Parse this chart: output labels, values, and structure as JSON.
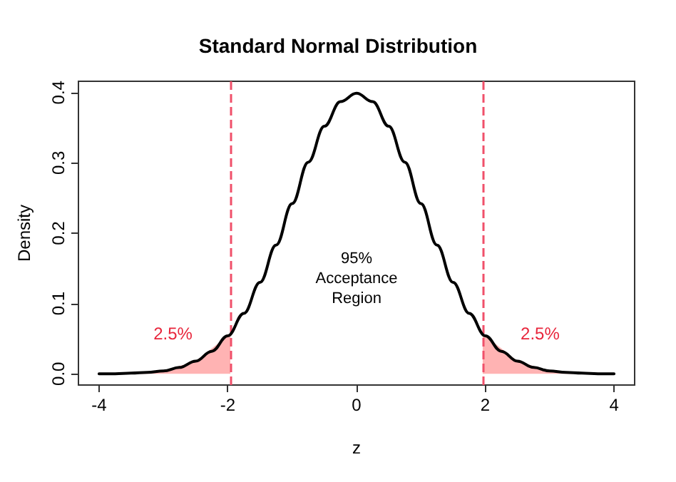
{
  "chart_data": {
    "type": "line",
    "title": "Standard Normal Distribution",
    "xlabel": "z",
    "ylabel": "Density",
    "x": [
      -4,
      -3.75,
      -3.5,
      -3.25,
      -3,
      -2.75,
      -2.5,
      -2.25,
      -2,
      -1.75,
      -1.5,
      -1.25,
      -1,
      -0.75,
      -0.5,
      -0.25,
      0,
      0.25,
      0.5,
      0.75,
      1,
      1.25,
      1.5,
      1.75,
      2,
      2.25,
      2.5,
      2.75,
      3,
      3.25,
      3.5,
      3.75,
      4
    ],
    "series": [
      {
        "color": "#000000",
        "values": [
          0.0,
          0.0,
          0.001,
          0.002,
          0.004,
          0.009,
          0.018,
          0.032,
          0.054,
          0.086,
          0.13,
          0.183,
          0.242,
          0.301,
          0.352,
          0.387,
          0.399,
          0.387,
          0.352,
          0.301,
          0.242,
          0.183,
          0.13,
          0.086,
          0.054,
          0.032,
          0.018,
          0.009,
          0.004,
          0.002,
          0.001,
          0.0,
          0.0
        ]
      },
      {
        "type": "area",
        "color": "#ffb3b3",
        "x": [
          -4,
          -3.5,
          -3,
          -2.5,
          -2,
          -1.96
        ],
        "values": [
          0.0,
          0.001,
          0.004,
          0.018,
          0.054,
          0.058
        ]
      },
      {
        "type": "area",
        "color": "#ffb3b3",
        "x": [
          1.96,
          2,
          2.5,
          3,
          3.5,
          4
        ],
        "values": [
          0.058,
          0.054,
          0.018,
          0.004,
          0.001,
          0.0
        ]
      }
    ],
    "ref_lines": [
      {
        "axis": "x",
        "value": -1.96,
        "color": "#f0506a",
        "line_style": "dashed"
      },
      {
        "axis": "x",
        "value": 1.96,
        "color": "#f0506a",
        "line_style": "dashed"
      }
    ],
    "annotations": [
      "95%\nAcceptance\nRegion",
      "2.5%",
      "2.5%"
    ],
    "xlim": [
      -4.32,
      4.32
    ],
    "xticks": [
      -4,
      -2,
      0,
      2,
      4
    ],
    "ylim": [
      -0.016,
      0.416
    ],
    "yticks": [
      {
        "value": 0,
        "label": "0.0"
      },
      {
        "value": 0.1,
        "label": "0.1"
      },
      {
        "value": 0.2,
        "label": "0.2"
      },
      {
        "value": 0.3,
        "label": "0.3"
      },
      {
        "value": 0.4,
        "label": "0.4"
      }
    ],
    "grid": false,
    "marker": "none",
    "line_style": "solid"
  }
}
